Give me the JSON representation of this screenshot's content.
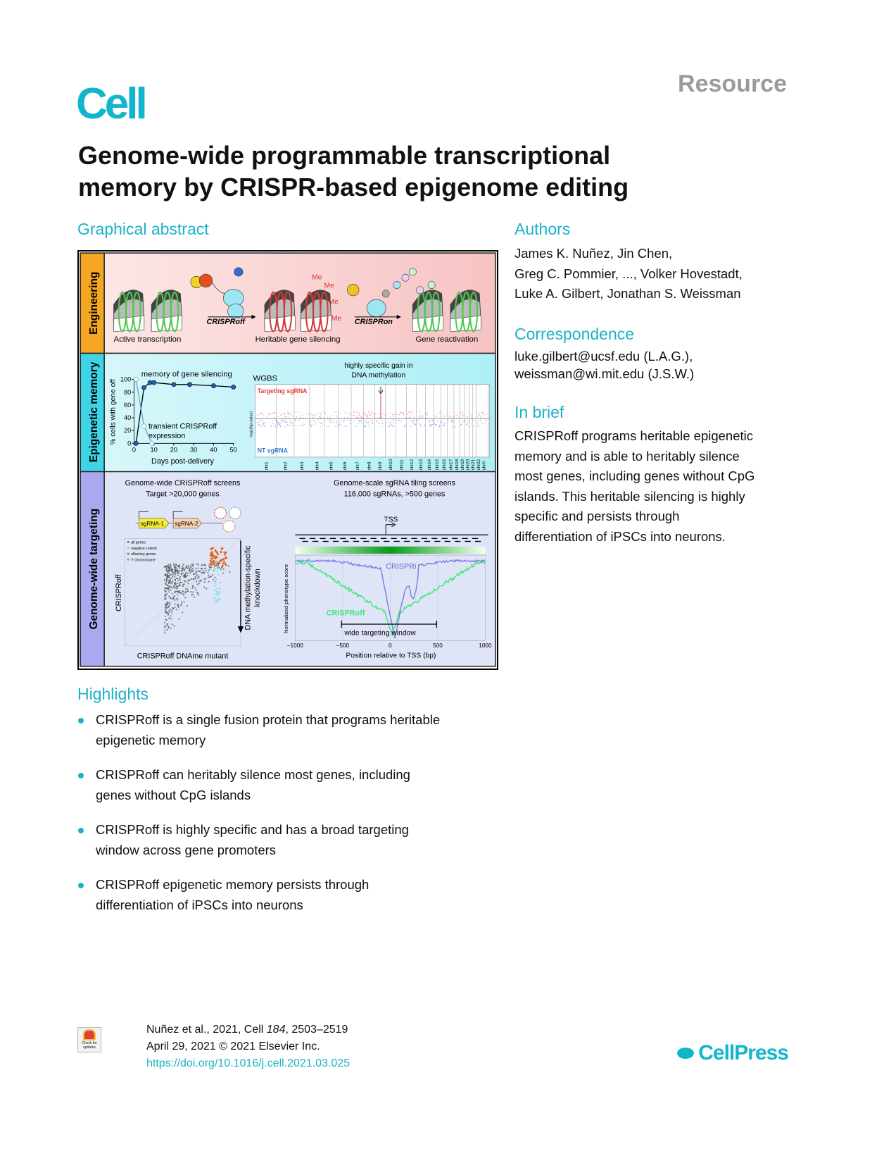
{
  "header": {
    "article_type": "Resource",
    "journal_logo": "Cell",
    "title_line1": "Genome-wide programmable transcriptional",
    "title_line2": "memory by CRISPR-based epigenome editing"
  },
  "graphical_abstract": {
    "heading": "Graphical abstract",
    "rows": {
      "engineering": "Engineering",
      "epigenetic_memory": "Epigenetic memory",
      "genome_wide": "Genome-wide targeting"
    },
    "engineering": {
      "active": "Active transcription",
      "silencing": "Heritable gene silencing",
      "reactivation": "Gene reactivation",
      "crisproff": "CRISPRoff",
      "crispron": "CRISPRon",
      "me": "Me"
    },
    "memory_chart": {
      "title": "memory of gene silencing",
      "transient_line1": "transient CRISPRoff",
      "transient_line2": "expression",
      "xlabel": "Days post-delivery",
      "ylabel": "% cells with gene off"
    },
    "wgbs": {
      "label": "WGBS",
      "annot_line1": "highly specific gain in",
      "annot_line2": "DNA methylation",
      "targeting": "Targeting sgRNA",
      "nt": "NT sgRNA",
      "ylabel": "-log10(p-value)",
      "chromosomes": [
        "chr1",
        "chr2",
        "chr3",
        "chr4",
        "chr5",
        "chr6",
        "chr7",
        "chr8",
        "chr9",
        "chr10",
        "chr11",
        "chr12",
        "chr13",
        "chr14",
        "chr15",
        "chr16",
        "chr17",
        "chr18",
        "chr19",
        "chr20",
        "chr21",
        "chr22",
        "chrX"
      ]
    },
    "screens": {
      "left_line1": "Genome-wide CRISPRoff screens",
      "left_line2": "Target >20,000 genes",
      "right_line1": "Genome-scale sgRNA tiling screens",
      "right_line2": "116,000 sgRNAs, >500 genes",
      "sgrna1": "sgRNA-1",
      "sgrna2": "sgRNA-2",
      "legend": [
        "all genes",
        "negative control",
        "olfactory genes",
        "Y chromosome"
      ],
      "scatter_xlabel": "CRISPRoff DNAme mutant",
      "scatter_ylabel": "CRISPRoff",
      "arrow_line1": "DNA methylation-specific",
      "arrow_line2": "knockdown",
      "tss": "TSS",
      "crispri": "CRISPRi",
      "crisproff": "CRISPRoff",
      "window": "wide targeting window",
      "tiling_xlabel": "Position relative to TSS (bp)",
      "tiling_ylabel": "Normalized phenotype score"
    }
  },
  "chart_data": [
    {
      "type": "line",
      "title": "memory of gene silencing",
      "xlabel": "Days post-delivery",
      "ylabel": "% cells with gene off",
      "xlim": [
        0,
        50
      ],
      "ylim": [
        0,
        100
      ],
      "xticks": [
        0,
        10,
        20,
        30,
        40,
        50
      ],
      "yticks": [
        0,
        20,
        40,
        60,
        80,
        100
      ],
      "series": [
        {
          "name": "memory of gene silencing",
          "color": "#1f5fb0",
          "x": [
            1,
            5,
            8,
            10,
            20,
            28,
            40,
            50
          ],
          "y": [
            0,
            87,
            95,
            95,
            92,
            92,
            90,
            88
          ]
        },
        {
          "name": "transient CRISPRoff expression",
          "color": "#5aa7d8",
          "x": [
            1,
            5,
            9
          ],
          "y": [
            100,
            27,
            0
          ]
        }
      ]
    },
    {
      "type": "line",
      "xlabel": "Position relative to TSS (bp)",
      "ylabel": "Normalized phenotype score",
      "xlim": [
        -1000,
        1000
      ],
      "xticks": [
        -1000,
        -500,
        0,
        500,
        1000
      ],
      "series": [
        {
          "name": "CRISPRi",
          "color": "#7b7fe0"
        },
        {
          "name": "CRISPRoff",
          "color": "#3ee87a"
        }
      ]
    }
  ],
  "authors": {
    "heading": "Authors",
    "line1": "James K. Nuñez, Jin Chen,",
    "line2": "Greg C. Pommier, ..., Volker Hovestadt,",
    "line3": "Luke A. Gilbert, Jonathan S. Weissman"
  },
  "correspondence": {
    "heading": "Correspondence",
    "line1": "luke.gilbert@ucsf.edu (L.A.G.),",
    "line2": "weissman@wi.mit.edu (J.S.W.)"
  },
  "in_brief": {
    "heading": "In brief",
    "lines": [
      "CRISPRoff programs heritable epigenetic",
      "memory and is able to heritably silence",
      "most genes, including genes without CpG",
      "islands. This heritable silencing is highly",
      "specific and persists through",
      "differentiation of iPSCs into neurons."
    ]
  },
  "highlights": {
    "heading": "Highlights",
    "items": [
      [
        "CRISPRoff is a single fusion protein that programs heritable",
        "epigenetic memory"
      ],
      [
        "CRISPRoff can heritably silence most genes, including",
        "genes without CpG islands"
      ],
      [
        "CRISPRoff is highly specific and has a broad targeting",
        "window across gene promoters"
      ],
      [
        "CRISPRoff epigenetic memory persists through",
        "differentiation of iPSCs into neurons"
      ]
    ]
  },
  "footer": {
    "citation_a": "Nuñez et al., 2021, Cell ",
    "volume": "184",
    "citation_b": ", 2503–2519",
    "date": "April 29, 2021 © 2021 Elsevier Inc.",
    "doi": "https://doi.org/10.1016/j.cell.2021.03.025",
    "check_updates": "Check for updates",
    "publisher_logo": "CellPress"
  },
  "colors": {
    "accent": "#1ab3c8",
    "engineering": "#f5a623",
    "epigenetic": "#3fd3e6",
    "genome": "#a9a9ef"
  }
}
